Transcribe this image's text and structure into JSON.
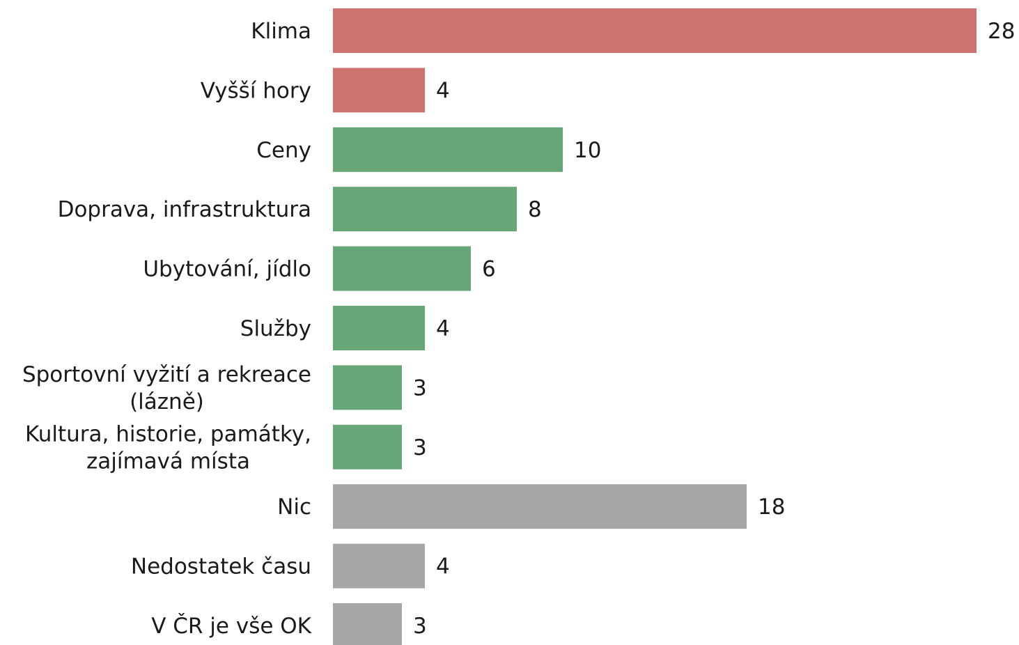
{
  "chart_data": {
    "type": "bar",
    "orientation": "horizontal",
    "title": "",
    "xlabel": "",
    "ylabel": "",
    "xlim": [
      0,
      28
    ],
    "grid": false,
    "legend": "none",
    "colors": {
      "red": "#cd726e",
      "green": "#67a676",
      "gray": "#a6a6a6"
    },
    "bars": [
      {
        "label": "Klima",
        "value": 28,
        "color": "red"
      },
      {
        "label": "Vyšší hory",
        "value": 4,
        "color": "red"
      },
      {
        "label": "Ceny",
        "value": 10,
        "color": "green"
      },
      {
        "label": "Doprava, infrastruktura",
        "value": 8,
        "color": "green"
      },
      {
        "label": "Ubytování, jídlo",
        "value": 6,
        "color": "green"
      },
      {
        "label": "Služby",
        "value": 4,
        "color": "green"
      },
      {
        "label": "Sportovní vyžití a rekreace (lázně)",
        "value": 3,
        "color": "green"
      },
      {
        "label": "Kultura, historie, památky, zajímavá místa",
        "value": 3,
        "color": "green"
      },
      {
        "label": "Nic",
        "value": 18,
        "color": "gray"
      },
      {
        "label": "Nedostatek času",
        "value": 4,
        "color": "gray"
      },
      {
        "label": "V ČR je vše OK",
        "value": 3,
        "color": "gray"
      }
    ]
  }
}
